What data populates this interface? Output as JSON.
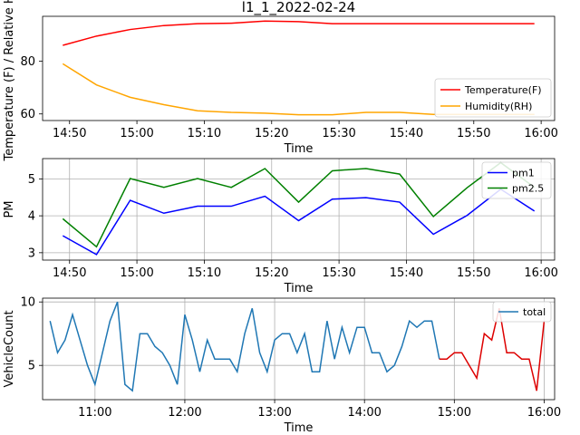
{
  "chart_data": [
    {
      "type": "line",
      "title": "l1_1_2022-02-24",
      "xlabel": "Time",
      "ylabel": "Temperature (F) / Relative Hum",
      "ylim": [
        57.5,
        97
      ],
      "xlim": [
        "14:46",
        "16:02"
      ],
      "x_ticks": [
        "14:50",
        "15:00",
        "15:10",
        "15:20",
        "15:30",
        "15:40",
        "15:50",
        "16:00"
      ],
      "y_ticks": [
        60,
        80
      ],
      "grid": false,
      "legend": "lower-right",
      "x": [
        "14:49",
        "14:54",
        "14:59",
        "15:04",
        "15:09",
        "15:14",
        "15:19",
        "15:24",
        "15:29",
        "15:34",
        "15:39",
        "15:44",
        "15:49",
        "15:54",
        "15:59"
      ],
      "series": [
        {
          "name": "Temperature(F)",
          "color": "#ff0000",
          "values": [
            86,
            89.5,
            92,
            93.5,
            94.2,
            94.4,
            95.2,
            95,
            94.2,
            94.2,
            94.2,
            94.2,
            94.2,
            94.2,
            94.2
          ]
        },
        {
          "name": "Humidity(RH)",
          "color": "#ffa500",
          "values": [
            79,
            71,
            66.3,
            63.5,
            61.2,
            60.6,
            60.3,
            59.7,
            59.7,
            60.6,
            60.6,
            59.8,
            59.8,
            59.8,
            59.8
          ]
        }
      ]
    },
    {
      "type": "line",
      "xlabel": "Time",
      "ylabel": "PM",
      "ylim": [
        2.8,
        5.55
      ],
      "xlim": [
        "14:46",
        "16:02"
      ],
      "x_ticks": [
        "14:50",
        "15:00",
        "15:10",
        "15:20",
        "15:30",
        "15:40",
        "15:50",
        "16:00"
      ],
      "y_ticks": [
        3,
        4,
        5
      ],
      "grid": true,
      "legend": "top-right",
      "x": [
        "14:49",
        "14:54",
        "14:59",
        "15:04",
        "15:09",
        "15:14",
        "15:19",
        "15:24",
        "15:29",
        "15:34",
        "15:39",
        "15:44",
        "15:49",
        "15:54",
        "15:59"
      ],
      "series": [
        {
          "name": "pm1",
          "color": "#0000ff",
          "values": [
            3.46,
            2.95,
            4.42,
            4.07,
            4.26,
            4.26,
            4.53,
            3.87,
            4.45,
            4.49,
            4.37,
            3.5,
            4.01,
            4.72,
            4.13
          ]
        },
        {
          "name": "pm2.5",
          "color": "#008000",
          "values": [
            3.92,
            3.16,
            5.01,
            4.77,
            5.01,
            4.77,
            5.28,
            4.37,
            5.22,
            5.28,
            5.13,
            3.98,
            4.76,
            5.44,
            4.77
          ]
        }
      ]
    },
    {
      "type": "line",
      "xlabel": "Time",
      "ylabel": "VehicleCount",
      "ylim": [
        2.3,
        10.3
      ],
      "xlim": [
        "10:25",
        "16:07"
      ],
      "x_ticks": [
        "11:00",
        "12:00",
        "13:00",
        "14:00",
        "15:00",
        "16:00"
      ],
      "y_ticks": [
        5,
        10
      ],
      "grid": true,
      "legend": "top-right",
      "highlight_after": "14:50",
      "highlight_color": "#dd0000",
      "series": [
        {
          "name": "total",
          "color": "#1f77b4",
          "x": [
            "10:30",
            "10:35",
            "10:40",
            "10:45",
            "10:50",
            "10:55",
            "11:00",
            "11:05",
            "11:10",
            "11:15",
            "11:20",
            "11:25",
            "11:30",
            "11:35",
            "11:40",
            "11:45",
            "11:50",
            "11:55",
            "12:00",
            "12:05",
            "12:10",
            "12:15",
            "12:20",
            "12:25",
            "12:30",
            "12:35",
            "12:40",
            "12:45",
            "12:50",
            "12:55",
            "13:00",
            "13:05",
            "13:10",
            "13:15",
            "13:20",
            "13:25",
            "13:30",
            "13:35",
            "13:40",
            "13:45",
            "13:50",
            "13:55",
            "14:00",
            "14:05",
            "14:10",
            "14:15",
            "14:20",
            "14:25",
            "14:30",
            "14:35",
            "14:40",
            "14:45",
            "14:50",
            "14:55",
            "15:00",
            "15:05",
            "15:10",
            "15:15",
            "15:20",
            "15:25",
            "15:30",
            "15:35",
            "15:40",
            "15:45",
            "15:50",
            "15:55",
            "16:00"
          ],
          "values": [
            8.5,
            6,
            7,
            9,
            7,
            5,
            3.5,
            6,
            8.5,
            10,
            3.5,
            3,
            7.5,
            7.5,
            6.5,
            6,
            5,
            3.5,
            9,
            7,
            4.5,
            7,
            5.5,
            5.5,
            5.5,
            4.5,
            7.5,
            9.5,
            6,
            4.5,
            7,
            7.5,
            7.5,
            6,
            7.5,
            4.5,
            4.5,
            8.5,
            5.5,
            8,
            6,
            8,
            8,
            6,
            6,
            4.5,
            5,
            6.5,
            8.5,
            8,
            8.5,
            8.5,
            5.5,
            5.5,
            6,
            6,
            5,
            4,
            7.5,
            7,
            9.5,
            6,
            6,
            5.5,
            5.5,
            3,
            8.5
          ]
        }
      ]
    }
  ]
}
